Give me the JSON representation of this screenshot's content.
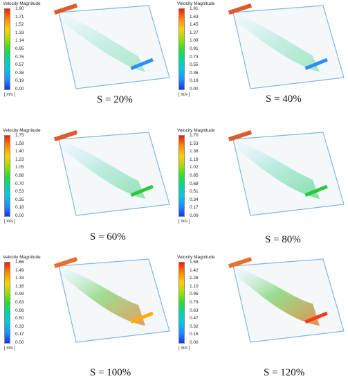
{
  "figure": {
    "panels": [
      {
        "legend_title": "Velocity Magnitude",
        "ticks": [
          "1.90",
          "1.71",
          "1.52",
          "1.33",
          "1.14",
          "0.95",
          "0.76",
          "0.57",
          "0.38",
          "0.19",
          "0.00"
        ],
        "unit": "[ m/s ]",
        "caption": "S = 20%",
        "flow_intensity": 0.15
      },
      {
        "legend_title": "Velocity Magnitude",
        "ticks": [
          "1.81",
          "1.63",
          "1.45",
          "1.27",
          "1.09",
          "0.91",
          "0.73",
          "0.55",
          "0.36",
          "0.18",
          "0.00"
        ],
        "unit": "[ m/s ]",
        "caption": "S = 40%",
        "flow_intensity": 0.25
      },
      {
        "legend_title": "Velocity Magnitude",
        "ticks": [
          "1.75",
          "1.58",
          "1.40",
          "1.23",
          "1.05",
          "0.88",
          "0.70",
          "0.53",
          "0.35",
          "0.18",
          "0.00"
        ],
        "unit": "[ m/s ]",
        "caption": "S = 60%",
        "flow_intensity": 0.45
      },
      {
        "legend_title": "Velocity Magnitude",
        "ticks": [
          "1.70",
          "1.53",
          "1.36",
          "1.19",
          "1.02",
          "0.85",
          "0.68",
          "0.51",
          "0.34",
          "0.17",
          "0.00"
        ],
        "unit": "[ m/s ]",
        "caption": "S = 80%",
        "flow_intensity": 0.6
      },
      {
        "legend_title": "Velocity Magnitude",
        "ticks": [
          "1.66",
          "1.49",
          "1.33",
          "1.16",
          "0.99",
          "0.83",
          "0.66",
          "0.50",
          "0.33",
          "0.17",
          "0.00"
        ],
        "unit": "[ m/s ]",
        "caption": "S = 100%",
        "flow_intensity": 0.8
      },
      {
        "legend_title": "Velocity Magnitude",
        "ticks": [
          "1.58",
          "1.42",
          "1.26",
          "1.10",
          "0.95",
          "0.79",
          "0.63",
          "0.47",
          "0.32",
          "0.16",
          "0.00"
        ],
        "unit": "[ m/s ]",
        "caption": "S = 120%",
        "flow_intensity": 0.95
      }
    ]
  }
}
